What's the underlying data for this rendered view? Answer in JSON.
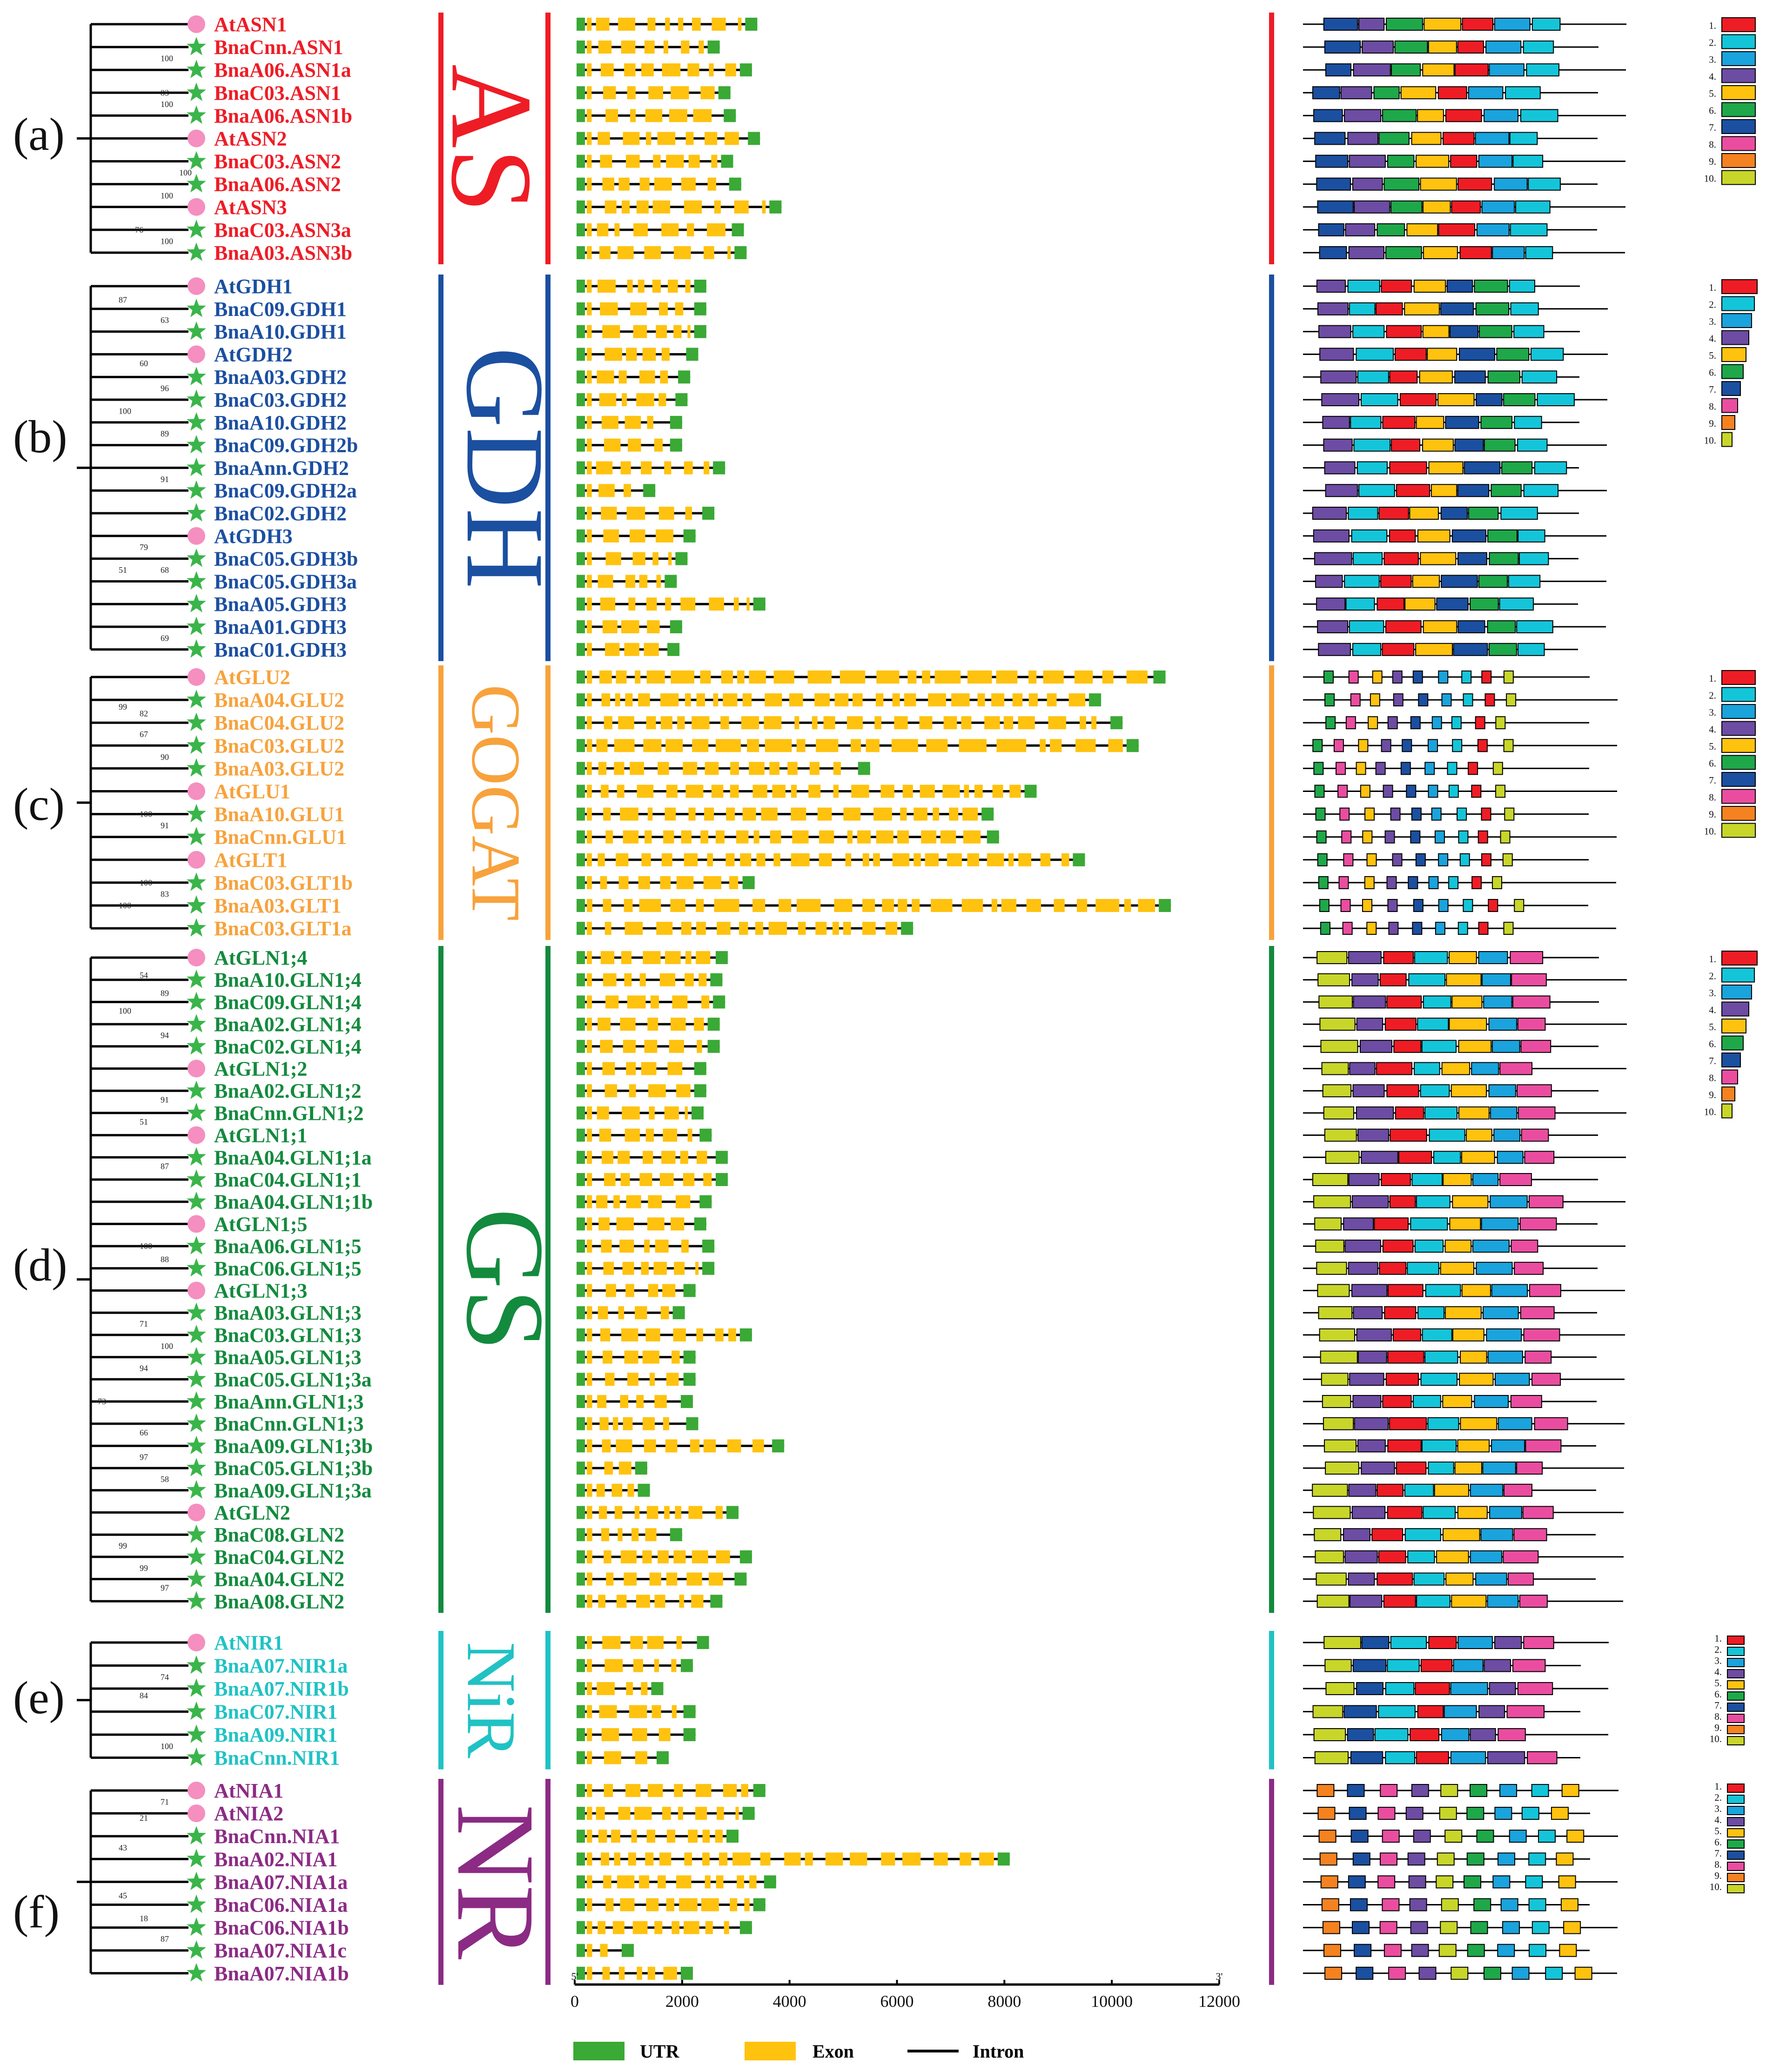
{
  "legend": {
    "utr": "UTR",
    "exon": "Exon",
    "intron": "Intron",
    "utr_color": "#3aa935",
    "exon_color": "#ffc20e",
    "intron_color": "#000000"
  },
  "axis": {
    "ticks": [
      "0",
      "2000",
      "4000",
      "6000",
      "8000",
      "10000",
      "12000"
    ],
    "min": 0,
    "max": 12000,
    "end5": "5'",
    "end3": "3'"
  },
  "motif_colors": [
    "#ee1c25",
    "#14c5d9",
    "#1aa3dc",
    "#6d4ca3",
    "#ffc20e",
    "#1ea84a",
    "#1b4fa0",
    "#ea4da0",
    "#f58220",
    "#c8d62a"
  ],
  "motif_numbers": [
    "1.",
    "2.",
    "3.",
    "4.",
    "5.",
    "6.",
    "7.",
    "8.",
    "9.",
    "10."
  ],
  "groups": [
    {
      "panel": "(a)",
      "family": "AS",
      "color": "#ee1c25",
      "genes": [
        {
          "name": "AtASN1",
          "marker": "At",
          "length": 3400
        },
        {
          "name": "BnaCnn.ASN1",
          "marker": "Bna",
          "length": 2700
        },
        {
          "name": "BnaA06.ASN1a",
          "marker": "Bna",
          "length": 3300
        },
        {
          "name": "BnaC03.ASN1",
          "marker": "Bna",
          "length": 2900
        },
        {
          "name": "BnaA06.ASN1b",
          "marker": "Bna",
          "length": 3000
        },
        {
          "name": "AtASN2",
          "marker": "At",
          "length": 3450
        },
        {
          "name": "BnaC03.ASN2",
          "marker": "Bna",
          "length": 2950
        },
        {
          "name": "BnaA06.ASN2",
          "marker": "Bna",
          "length": 3100
        },
        {
          "name": "AtASN3",
          "marker": "At",
          "length": 3850
        },
        {
          "name": "BnaC03.ASN3a",
          "marker": "Bna",
          "length": 3150
        },
        {
          "name": "BnaA03.ASN3b",
          "marker": "Bna",
          "length": 3200
        }
      ],
      "bootstraps": [
        "100",
        "83",
        "100",
        "100",
        "100",
        "76",
        "100"
      ]
    },
    {
      "panel": "(b)",
      "family": "GDH",
      "color": "#1b4fa0",
      "genes": [
        {
          "name": "AtGDH1",
          "marker": "At",
          "length": 2450
        },
        {
          "name": "BnaC09.GDH1",
          "marker": "Bna",
          "length": 2450
        },
        {
          "name": "BnaA10.GDH1",
          "marker": "Bna",
          "length": 2450
        },
        {
          "name": "AtGDH2",
          "marker": "At",
          "length": 2300
        },
        {
          "name": "BnaA03.GDH2",
          "marker": "Bna",
          "length": 2150
        },
        {
          "name": "BnaC03.GDH2",
          "marker": "Bna",
          "length": 2100
        },
        {
          "name": "BnaA10.GDH2",
          "marker": "Bna",
          "length": 2000
        },
        {
          "name": "BnaC09.GDH2b",
          "marker": "Bna",
          "length": 2000
        },
        {
          "name": "BnaAnn.GDH2",
          "marker": "Bna",
          "length": 2800
        },
        {
          "name": "BnaC09.GDH2a",
          "marker": "Bna",
          "length": 1500
        },
        {
          "name": "BnaC02.GDH2",
          "marker": "Bna",
          "length": 2600
        },
        {
          "name": "AtGDH3",
          "marker": "At",
          "length": 2250
        },
        {
          "name": "BnaC05.GDH3b",
          "marker": "Bna",
          "length": 2100
        },
        {
          "name": "BnaC05.GDH3a",
          "marker": "Bna",
          "length": 1900
        },
        {
          "name": "BnaA05.GDH3",
          "marker": "Bna",
          "length": 3550
        },
        {
          "name": "BnaA01.GDH3",
          "marker": "Bna",
          "length": 2000
        },
        {
          "name": "BnaC01.GDH3",
          "marker": "Bna",
          "length": 1950
        }
      ],
      "bootstraps": [
        "87",
        "63",
        "60",
        "96",
        "100",
        "89",
        "91",
        "79",
        "51",
        "68",
        "69"
      ]
    },
    {
      "panel": "(c)",
      "family": "GOGAT",
      "color": "#f7a23c",
      "genes": [
        {
          "name": "AtGLU2",
          "marker": "At",
          "length": 11000
        },
        {
          "name": "BnaA04.GLU2",
          "marker": "Bna",
          "length": 9800
        },
        {
          "name": "BnaC04.GLU2",
          "marker": "Bna",
          "length": 10200
        },
        {
          "name": "BnaC03.GLU2",
          "marker": "Bna",
          "length": 10500
        },
        {
          "name": "BnaA03.GLU2",
          "marker": "Bna",
          "length": 5500
        },
        {
          "name": "AtGLU1",
          "marker": "At",
          "length": 8600
        },
        {
          "name": "BnaA10.GLU1",
          "marker": "Bna",
          "length": 7800
        },
        {
          "name": "BnaCnn.GLU1",
          "marker": "Bna",
          "length": 7900
        },
        {
          "name": "AtGLT1",
          "marker": "At",
          "length": 9500
        },
        {
          "name": "BnaC03.GLT1b",
          "marker": "Bna",
          "length": 3350
        },
        {
          "name": "BnaA03.GLT1",
          "marker": "Bna",
          "length": 11100
        },
        {
          "name": "BnaC03.GLT1a",
          "marker": "Bna",
          "length": 6300
        }
      ],
      "bootstraps": [
        "99",
        "82",
        "67",
        "90",
        "100",
        "91",
        "100",
        "83",
        "100"
      ]
    },
    {
      "panel": "(d)",
      "family": "GS",
      "color": "#138a3e",
      "genes": [
        {
          "name": "AtGLN1;4",
          "marker": "At",
          "length": 2850
        },
        {
          "name": "BnaA10.GLN1;4",
          "marker": "Bna",
          "length": 2750
        },
        {
          "name": "BnaC09.GLN1;4",
          "marker": "Bna",
          "length": 2800
        },
        {
          "name": "BnaA02.GLN1;4",
          "marker": "Bna",
          "length": 2700
        },
        {
          "name": "BnaC02.GLN1;4",
          "marker": "Bna",
          "length": 2700
        },
        {
          "name": "AtGLN1;2",
          "marker": "At",
          "length": 2450
        },
        {
          "name": "BnaA02.GLN1;2",
          "marker": "Bna",
          "length": 2450
        },
        {
          "name": "BnaCnn.GLN1;2",
          "marker": "Bna",
          "length": 2400
        },
        {
          "name": "AtGLN1;1",
          "marker": "At",
          "length": 2550
        },
        {
          "name": "BnaA04.GLN1;1a",
          "marker": "Bna",
          "length": 2850
        },
        {
          "name": "BnaC04.GLN1;1",
          "marker": "Bna",
          "length": 2850
        },
        {
          "name": "BnaA04.GLN1;1b",
          "marker": "Bna",
          "length": 2550
        },
        {
          "name": "AtGLN1;5",
          "marker": "At",
          "length": 2450
        },
        {
          "name": "BnaA06.GLN1;5",
          "marker": "Bna",
          "length": 2600
        },
        {
          "name": "BnaC06.GLN1;5",
          "marker": "Bna",
          "length": 2600
        },
        {
          "name": "AtGLN1;3",
          "marker": "At",
          "length": 2250
        },
        {
          "name": "BnaA03.GLN1;3",
          "marker": "Bna",
          "length": 2050
        },
        {
          "name": "BnaC03.GLN1;3",
          "marker": "Bna",
          "length": 3300
        },
        {
          "name": "BnaA05.GLN1;3",
          "marker": "Bna",
          "length": 2250
        },
        {
          "name": "BnaC05.GLN1;3a",
          "marker": "Bna",
          "length": 2250
        },
        {
          "name": "BnaAnn.GLN1;3",
          "marker": "Bna",
          "length": 2200
        },
        {
          "name": "BnaCnn.GLN1;3",
          "marker": "Bna",
          "length": 2300
        },
        {
          "name": "BnaA09.GLN1;3b",
          "marker": "Bna",
          "length": 3900
        },
        {
          "name": "BnaC05.GLN1;3b",
          "marker": "Bna",
          "length": 1350
        },
        {
          "name": "BnaA09.GLN1;3a",
          "marker": "Bna",
          "length": 1400
        },
        {
          "name": "AtGLN2",
          "marker": "At",
          "length": 3050
        },
        {
          "name": "BnaC08.GLN2",
          "marker": "Bna",
          "length": 2000
        },
        {
          "name": "BnaC04.GLN2",
          "marker": "Bna",
          "length": 3300
        },
        {
          "name": "BnaA04.GLN2",
          "marker": "Bna",
          "length": 3200
        },
        {
          "name": "BnaA08.GLN2",
          "marker": "Bna",
          "length": 2750
        }
      ],
      "bootstraps": [
        "54",
        "89",
        "100",
        "94",
        "91",
        "51",
        "87",
        "100",
        "88",
        "71",
        "100",
        "94",
        "73",
        "66",
        "97",
        "58",
        "99",
        "99",
        "97"
      ]
    },
    {
      "panel": "(e)",
      "family": "NiR",
      "color": "#20c2c4",
      "genes": [
        {
          "name": "AtNIR1",
          "marker": "At",
          "length": 2500
        },
        {
          "name": "BnaA07.NIR1a",
          "marker": "Bna",
          "length": 2200
        },
        {
          "name": "BnaA07.NIR1b",
          "marker": "Bna",
          "length": 1650
        },
        {
          "name": "BnaC07.NIR1",
          "marker": "Bna",
          "length": 2250
        },
        {
          "name": "BnaA09.NIR1",
          "marker": "Bna",
          "length": 2250
        },
        {
          "name": "BnaCnn.NIR1",
          "marker": "Bna",
          "length": 1750
        }
      ],
      "bootstraps": [
        "74",
        "84",
        "100"
      ]
    },
    {
      "panel": "(f)",
      "family": "NR",
      "color": "#8b2b84",
      "genes": [
        {
          "name": "AtNIA1",
          "marker": "At",
          "length": 3550
        },
        {
          "name": "AtNIA2",
          "marker": "At",
          "length": 3350
        },
        {
          "name": "BnaCnn.NIA1",
          "marker": "Bna",
          "length": 3050
        },
        {
          "name": "BnaA02.NIA1",
          "marker": "Bna",
          "length": 8100
        },
        {
          "name": "BnaA07.NIA1a",
          "marker": "Bna",
          "length": 3750
        },
        {
          "name": "BnaC06.NIA1a",
          "marker": "Bna",
          "length": 3550
        },
        {
          "name": "BnaC06.NIA1b",
          "marker": "Bna",
          "length": 3300
        },
        {
          "name": "BnaA07.NIA1c",
          "marker": "Bna",
          "length": 1100
        },
        {
          "name": "BnaA07.NIA1b",
          "marker": "Bna",
          "length": 2200
        }
      ],
      "bootstraps": [
        "71",
        "21",
        "43",
        "45",
        "18",
        "87"
      ]
    }
  ]
}
